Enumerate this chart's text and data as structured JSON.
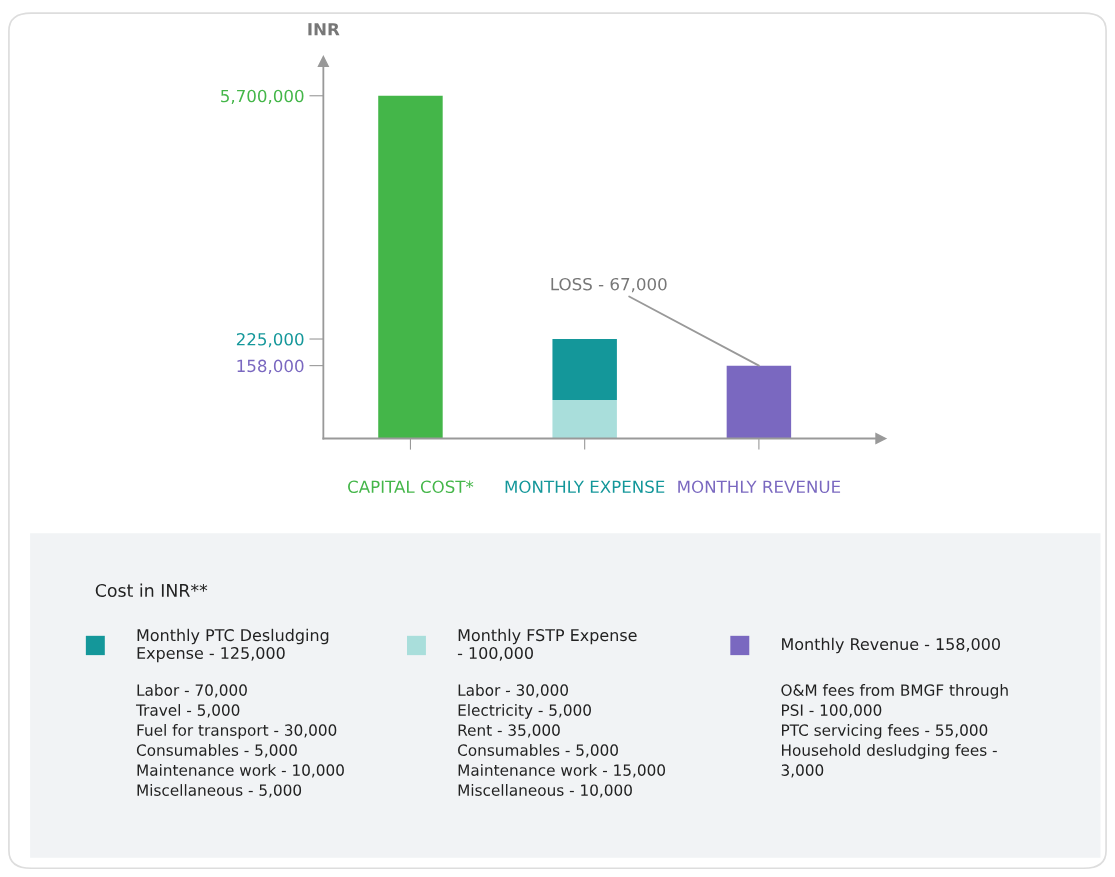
{
  "chart_data": {
    "type": "bar",
    "stacked": true,
    "log": true,
    "ylabel": "INR",
    "legend_title": "Cost in INR**",
    "legend": "bottom",
    "grid": false,
    "categories": [
      "CAPITAL COST*",
      "MONTHLY EXPENSE",
      "MONTHLY REVENUE"
    ],
    "series": [
      {
        "color": "#44b649",
        "values": [
          5700000,
          null,
          null
        ]
      },
      {
        "name": "Monthly FSTP Expense\n- 100,000",
        "color": "#a9dedb",
        "values": [
          null,
          100000,
          null
        ]
      },
      {
        "name": "Monthly PTC Desludging\nExpense - 125,000",
        "color": "#14979a",
        "values": [
          null,
          125000,
          null
        ]
      },
      {
        "name": "Monthly Revenue - 158,000",
        "color": "#7a68c0",
        "values": [
          null,
          null,
          158000
        ]
      }
    ],
    "ylim": [
      60000,
      9000000
    ],
    "yticks": [
      {
        "value": 158000,
        "label": "158,000"
      },
      {
        "value": 225000,
        "label": "225,000"
      },
      {
        "value": 5700000,
        "label": "5,700,000"
      }
    ],
    "annotations": [
      {
        "text": "LOSS - 67,000",
        "x": "MONTHLY REVENUE",
        "y": 158000
      },
      "Labor - 30,000\nElectricity - 5,000\nRent - 35,000\nConsumables - 5,000\nMaintenance work - 15,000\nMiscellaneous - 10,000",
      "Labor - 70,000\nTravel - 5,000\nFuel for transport - 30,000\nConsumables - 5,000\nMaintenance work - 10,000\nMiscellaneous - 5,000",
      "O&M fees from BMGF through\nPSI - 100,000\nPTC servicing fees - 55,000\nHousehold desludging fees -\n3,000"
    ]
  }
}
